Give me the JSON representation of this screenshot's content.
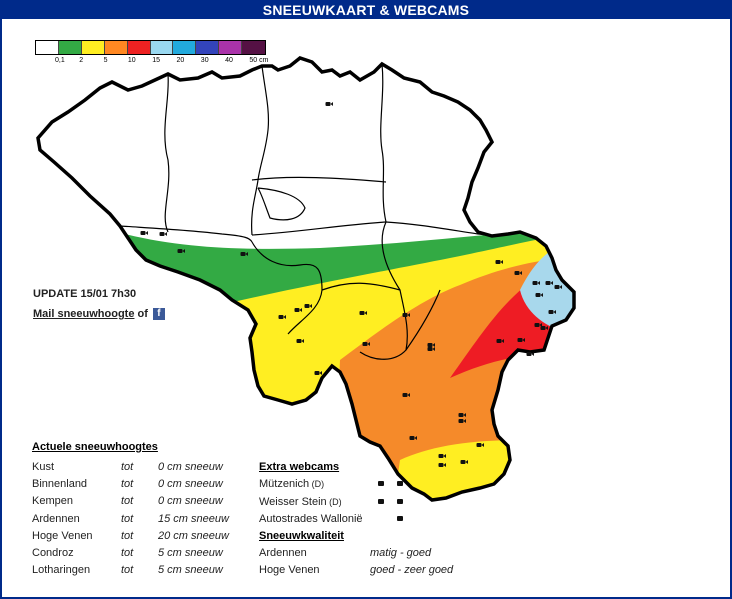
{
  "title": "SNEEUWKAART & WEBCAMS",
  "legend": {
    "colors": [
      "#ffffff",
      "#33aa44",
      "#ffee22",
      "#ff8822",
      "#ee2222",
      "#99d8f0",
      "#22aadd",
      "#3344bb",
      "#aa33aa",
      "#551144"
    ],
    "labels": [
      "0,1",
      "2",
      "5",
      "10",
      "15",
      "20",
      "30",
      "40",
      "50 cm"
    ]
  },
  "zone_colors": {
    "none": "#ffffff",
    "green": "#33aa44",
    "yellow": "#ffee22",
    "orange": "#f58a2a",
    "red": "#ee1c24",
    "lightblue": "#a8d8ec"
  },
  "update": "UPDATE 15/01 7h30",
  "mail": {
    "link": "Mail sneeuwhoogte",
    "suffix": " of ",
    "fb_icon": "f"
  },
  "snow_depths": {
    "heading": "Actuele sneeuwhoogtes",
    "rows": [
      {
        "region": "Kust",
        "tot": "tot",
        "value": "0 cm sneeuw"
      },
      {
        "region": "Binnenland",
        "tot": "tot",
        "value": "0 cm sneeuw"
      },
      {
        "region": "Kempen",
        "tot": "tot",
        "value": "0 cm sneeuw"
      },
      {
        "region": "Ardennen",
        "tot": "tot",
        "value": "15 cm sneeuw"
      },
      {
        "region": "Hoge Venen",
        "tot": "tot",
        "value": "20 cm sneeuw"
      },
      {
        "region": "Condroz",
        "tot": "tot",
        "value": "5 cm sneeuw"
      },
      {
        "region": "Lotharingen",
        "tot": "tot",
        "value": "5 cm sneeuw"
      }
    ]
  },
  "webcams": {
    "heading": "Extra webcams",
    "items": [
      {
        "name": "Mützenich",
        "tag": "(D)"
      },
      {
        "name": "Weisser Stein",
        "tag": "(D)"
      },
      {
        "name": "Autostrades Wallonië",
        "tag": ""
      }
    ]
  },
  "quality": {
    "heading": "Sneeuwkwaliteit",
    "rows": [
      {
        "region": "Ardennen",
        "value": "matig - goed"
      },
      {
        "region": "Hoge Venen",
        "value": "goed - zeer goed"
      }
    ]
  }
}
